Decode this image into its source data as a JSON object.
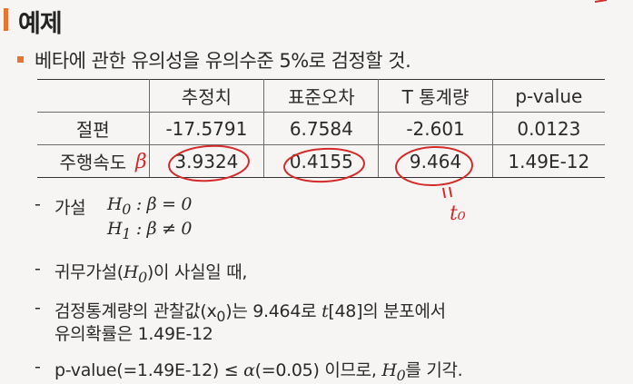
{
  "title": "예제",
  "subtitle": "베타에 관한 유의성을 유의수준 5%로 검정할 것.",
  "table": {
    "headers": [
      "",
      "추정치",
      "표준오차",
      "T 통계량",
      "p-value"
    ],
    "rows": [
      [
        "절편",
        "-17.5791",
        "6.7584",
        "-2.601",
        "0.0123"
      ],
      [
        "주행속도",
        "3.9324",
        "0.4155",
        "9.464",
        "1.49E-12"
      ]
    ]
  },
  "hypothesis": {
    "label": "가설",
    "h0_symbol": "H",
    "h0_sub": "0",
    "h0_rest": ": β = 0",
    "h1_symbol": "H",
    "h1_sub": "1",
    "h1_rest": ": β ≠ 0"
  },
  "bullet2": {
    "pre": "귀무가설(",
    "h": "H",
    "sub": "0",
    "post": ")이 사실일 때,"
  },
  "bullet3": {
    "line1_pre": "검정통계량의 관찰값(x",
    "line1_sub": "0",
    "line1_mid": ")는 9.464로 ",
    "line1_t": "t",
    "line1_post": "[48]의 분포에서",
    "line2": "유의확률은 1.49E-12"
  },
  "bullet4": {
    "pre": "p-value(=1.49E-12) ≤ ",
    "alpha": "α",
    "mid": "(=0.05) 이므로, ",
    "h": "H",
    "sub": "0",
    "post": "를 기각."
  },
  "annotations": {
    "beta_mark": "β",
    "t0_mark": "t₀",
    "ink_color": "#d42a2a"
  }
}
